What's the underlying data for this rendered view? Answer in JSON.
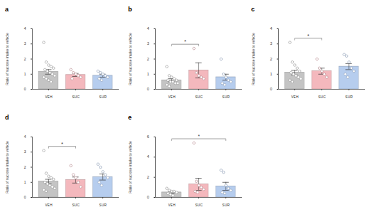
{
  "chart_data": [
    {
      "type": "bar",
      "panel": "a",
      "y_label": "Ratio of sucrose intake to vehicle",
      "categories": [
        "VEH",
        "SUC",
        "SUR"
      ],
      "values": [
        1.15,
        0.95,
        0.9
      ],
      "errors": [
        0.15,
        0.1,
        0.1
      ],
      "colors": [
        "#c4c4c4",
        "#f4b8bd",
        "#b6cdee"
      ],
      "points": [
        [
          3.1,
          1.8,
          1.6,
          1.5,
          1.4,
          1.3,
          1.2,
          1.1,
          1.0,
          0.9,
          0.8,
          0.7,
          0.6,
          0.5
        ],
        [
          1.3,
          1.1,
          1.0,
          0.9,
          0.8,
          0.7
        ],
        [
          1.2,
          1.1,
          1.0,
          0.9,
          0.8,
          0.7,
          0.6
        ]
      ],
      "ylim": [
        0,
        4
      ],
      "yticks": [
        0,
        1,
        2,
        3,
        4
      ],
      "significance": []
    },
    {
      "type": "bar",
      "panel": "b",
      "y_label": "Ratio of sucrose intake to vehicle",
      "categories": [
        "VEH",
        "SUC",
        "SUR"
      ],
      "values": [
        0.6,
        1.25,
        0.8
      ],
      "errors": [
        0.1,
        0.5,
        0.2
      ],
      "colors": [
        "#c4c4c4",
        "#f4b8bd",
        "#b6cdee"
      ],
      "points": [
        [
          1.5,
          0.9,
          0.8,
          0.7,
          0.6,
          0.6,
          0.5,
          0.5,
          0.4,
          0.4,
          0.3,
          0.2
        ],
        [
          2.7,
          1.1,
          0.9,
          0.8,
          0.7
        ],
        [
          2.0,
          1.0,
          0.8,
          0.6,
          0.5,
          0.4,
          0.3
        ]
      ],
      "ylim": [
        0,
        4
      ],
      "yticks": [
        0,
        1,
        2,
        3,
        4
      ],
      "significance": [
        {
          "groups": [
            "VEH",
            "SUC"
          ],
          "label": "*"
        }
      ]
    },
    {
      "type": "bar",
      "panel": "c",
      "y_label": "Ratio of sucrose intake to vehicle",
      "categories": [
        "VEH",
        "SUC",
        "SUR"
      ],
      "values": [
        1.1,
        1.2,
        1.5
      ],
      "errors": [
        0.15,
        0.2,
        0.2
      ],
      "colors": [
        "#c4c4c4",
        "#f4b8bd",
        "#b6cdee"
      ],
      "points": [
        [
          3.1,
          1.8,
          1.6,
          1.4,
          1.2,
          1.1,
          1.0,
          0.9,
          0.8,
          0.7,
          0.6,
          0.5
        ],
        [
          2.0,
          1.4,
          1.2,
          1.0,
          0.8
        ],
        [
          2.3,
          2.2,
          1.8,
          1.4,
          1.2,
          1.0,
          0.8
        ]
      ],
      "ylim": [
        0,
        4
      ],
      "yticks": [
        0,
        1,
        2,
        3,
        4
      ],
      "significance": [
        {
          "groups": [
            "VEH",
            "SUC"
          ],
          "label": "*"
        }
      ]
    },
    {
      "type": "bar",
      "panel": "d",
      "y_label": "Ratio of sucrose intake to vehicle",
      "categories": [
        "VEH",
        "SUC",
        "SUR"
      ],
      "values": [
        1.05,
        1.15,
        1.35
      ],
      "errors": [
        0.15,
        0.2,
        0.2
      ],
      "colors": [
        "#c4c4c4",
        "#f4b8bd",
        "#b6cdee"
      ],
      "points": [
        [
          3.1,
          1.6,
          1.4,
          1.3,
          1.2,
          1.0,
          0.9,
          0.8,
          0.7,
          0.6,
          0.5,
          0.4
        ],
        [
          2.1,
          1.5,
          1.3,
          1.0,
          0.7
        ],
        [
          2.2,
          2.0,
          1.7,
          1.5,
          1.3,
          1.0,
          0.8
        ]
      ],
      "ylim": [
        0,
        4
      ],
      "yticks": [
        0,
        1,
        2,
        3,
        4
      ],
      "significance": [
        {
          "groups": [
            "VEH",
            "SUC"
          ],
          "label": "*"
        }
      ]
    },
    {
      "type": "bar",
      "panel": "e",
      "y_label": "Ratio of sucrose intake to vehicle",
      "categories": [
        "VEH",
        "SUC",
        "SUR"
      ],
      "values": [
        0.5,
        1.3,
        1.1
      ],
      "errors": [
        0.1,
        0.6,
        0.4
      ],
      "colors": [
        "#c4c4c4",
        "#f4b8bd",
        "#b6cdee"
      ],
      "points": [
        [
          0.9,
          0.7,
          0.6,
          0.6,
          0.5,
          0.4,
          0.3,
          0.2
        ],
        [
          5.4,
          1.6,
          1.2,
          1.0,
          0.8,
          0.6,
          0.5
        ],
        [
          2.7,
          2.5,
          1.2,
          0.9,
          0.7,
          0.5,
          0.4
        ]
      ],
      "ylim": [
        0,
        6
      ],
      "yticks": [
        0,
        2,
        4,
        6
      ],
      "significance": [
        {
          "groups": [
            "VEH",
            "SUR"
          ],
          "label": "*"
        }
      ]
    }
  ]
}
